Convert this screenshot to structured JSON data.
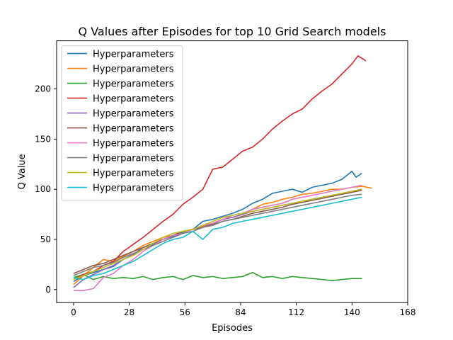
{
  "chart_data": {
    "type": "line",
    "title": "Q Values after Episodes for top 10 Grid Search models",
    "xlabel": "Episodes",
    "ylabel": "Q Value",
    "xlim": [
      -8.5,
      168
    ],
    "ylim": [
      -13,
      248
    ],
    "xticks": [
      0,
      28,
      56,
      84,
      112,
      140,
      168
    ],
    "yticks": [
      0,
      50,
      100,
      150,
      200
    ],
    "grid": false,
    "legend_position": "top-left",
    "series": [
      {
        "name": "Hyperparameters",
        "color": "#1f77b4",
        "x": [
          0,
          5,
          10,
          15,
          20,
          25,
          30,
          35,
          40,
          45,
          50,
          55,
          60,
          65,
          70,
          75,
          80,
          85,
          90,
          95,
          100,
          105,
          110,
          115,
          120,
          125,
          130,
          135,
          140,
          142,
          145
        ],
        "y": [
          8,
          14,
          17,
          20,
          23,
          30,
          35,
          40,
          45,
          50,
          53,
          57,
          60,
          68,
          70,
          73,
          76,
          80,
          86,
          90,
          96,
          98,
          100,
          97,
          102,
          104,
          106,
          110,
          118,
          112,
          116
        ]
      },
      {
        "name": "Hyperparameters",
        "color": "#ff7f0e",
        "x": [
          0,
          5,
          10,
          15,
          20,
          25,
          30,
          35,
          40,
          45,
          50,
          55,
          60,
          65,
          70,
          75,
          80,
          85,
          90,
          95,
          100,
          105,
          110,
          115,
          120,
          125,
          130,
          135,
          140,
          145,
          150
        ],
        "y": [
          5,
          14,
          22,
          30,
          28,
          33,
          38,
          44,
          48,
          52,
          54,
          58,
          60,
          63,
          66,
          70,
          72,
          75,
          80,
          85,
          87,
          90,
          92,
          95,
          96,
          98,
          100,
          100,
          102,
          103,
          101
        ]
      },
      {
        "name": "Hyperparameters",
        "color": "#2ca02c",
        "x": [
          0,
          5,
          10,
          15,
          20,
          25,
          30,
          35,
          40,
          45,
          50,
          55,
          60,
          65,
          70,
          75,
          80,
          85,
          90,
          95,
          100,
          105,
          110,
          115,
          120,
          125,
          130,
          135,
          140,
          145
        ],
        "y": [
          12,
          15,
          10,
          13,
          11,
          12,
          11,
          13,
          10,
          12,
          13,
          10,
          14,
          12,
          13,
          11,
          12,
          13,
          17,
          12,
          13,
          11,
          13,
          12,
          11,
          10,
          9,
          10,
          11,
          11
        ]
      },
      {
        "name": "Hyperparameters",
        "color": "#d62728",
        "x": [
          0,
          5,
          10,
          15,
          20,
          25,
          30,
          35,
          40,
          45,
          50,
          55,
          60,
          65,
          70,
          75,
          80,
          85,
          90,
          95,
          100,
          105,
          110,
          115,
          120,
          125,
          130,
          135,
          140,
          143,
          147
        ],
        "y": [
          10,
          15,
          18,
          24,
          28,
          38,
          45,
          52,
          60,
          68,
          75,
          85,
          92,
          100,
          120,
          122,
          130,
          138,
          142,
          150,
          160,
          168,
          175,
          180,
          190,
          198,
          205,
          215,
          225,
          233,
          228
        ]
      },
      {
        "name": "Hyperparameters",
        "color": "#9467bd",
        "x": [
          0,
          5,
          10,
          15,
          20,
          25,
          30,
          35,
          40,
          45,
          50,
          55,
          60,
          65,
          70,
          75,
          80,
          85,
          90,
          95,
          100,
          105,
          110,
          115,
          120,
          125,
          130,
          135,
          140,
          145
        ],
        "y": [
          2,
          10,
          15,
          20,
          24,
          30,
          35,
          42,
          46,
          50,
          54,
          58,
          60,
          62,
          66,
          70,
          72,
          75,
          78,
          80,
          82,
          84,
          86,
          88,
          90,
          92,
          94,
          96,
          98,
          100
        ]
      },
      {
        "name": "Hyperparameters",
        "color": "#8c564b",
        "x": [
          0,
          5,
          10,
          15,
          20,
          25,
          30,
          35,
          40,
          45,
          50,
          55,
          60,
          65,
          70,
          75,
          80,
          85,
          90,
          95,
          100,
          105,
          110,
          115,
          120,
          125,
          130,
          135,
          140,
          145
        ],
        "y": [
          16,
          20,
          24,
          26,
          30,
          34,
          38,
          42,
          46,
          50,
          54,
          58,
          60,
          62,
          65,
          68,
          70,
          73,
          76,
          78,
          80,
          82,
          85,
          87,
          89,
          91,
          93,
          95,
          97,
          99
        ]
      },
      {
        "name": "Hyperparameters",
        "color": "#e377c2",
        "x": [
          0,
          5,
          10,
          15,
          20,
          25,
          30,
          35,
          40,
          45,
          50,
          55,
          60,
          65,
          70,
          75,
          80,
          85,
          90,
          95,
          100,
          105,
          110,
          115,
          120,
          125,
          130,
          135,
          140,
          145
        ],
        "y": [
          -1,
          -1,
          1,
          12,
          16,
          24,
          30,
          38,
          44,
          50,
          54,
          56,
          60,
          64,
          66,
          70,
          74,
          76,
          80,
          82,
          84,
          86,
          90,
          92,
          94,
          96,
          98,
          100,
          102,
          104
        ]
      },
      {
        "name": "Hyperparameters",
        "color": "#7f7f7f",
        "x": [
          0,
          5,
          10,
          15,
          20,
          25,
          30,
          35,
          40,
          45,
          50,
          55,
          60,
          65,
          70,
          75,
          80,
          85,
          90,
          95,
          100,
          105,
          110,
          115,
          120,
          125,
          130,
          135,
          140,
          145
        ],
        "y": [
          14,
          18,
          22,
          24,
          27,
          32,
          36,
          40,
          44,
          48,
          52,
          56,
          58,
          62,
          64,
          68,
          70,
          72,
          74,
          76,
          78,
          80,
          82,
          84,
          86,
          88,
          90,
          92,
          94,
          95
        ]
      },
      {
        "name": "Hyperparameters",
        "color": "#bcbd22",
        "x": [
          0,
          5,
          10,
          15,
          20,
          25,
          30,
          35,
          40,
          45,
          50,
          55,
          60,
          65,
          70,
          75,
          80,
          85,
          90,
          95,
          100,
          105,
          110,
          115,
          120,
          125,
          130,
          135,
          140,
          145
        ],
        "y": [
          10,
          14,
          18,
          22,
          26,
          30,
          34,
          40,
          46,
          52,
          56,
          58,
          60,
          64,
          68,
          72,
          74,
          76,
          78,
          80,
          82,
          84,
          86,
          88,
          90,
          92,
          94,
          96,
          98,
          100
        ]
      },
      {
        "name": "Hyperparameters",
        "color": "#17becf",
        "x": [
          0,
          5,
          10,
          15,
          20,
          25,
          30,
          35,
          40,
          45,
          50,
          55,
          60,
          65,
          70,
          75,
          80,
          85,
          90,
          95,
          100,
          105,
          110,
          115,
          120,
          125,
          130,
          135,
          140,
          145
        ],
        "y": [
          12,
          10,
          14,
          16,
          20,
          24,
          28,
          34,
          40,
          46,
          50,
          52,
          58,
          50,
          60,
          62,
          66,
          68,
          70,
          72,
          74,
          76,
          78,
          80,
          82,
          84,
          86,
          88,
          90,
          92
        ]
      }
    ]
  }
}
